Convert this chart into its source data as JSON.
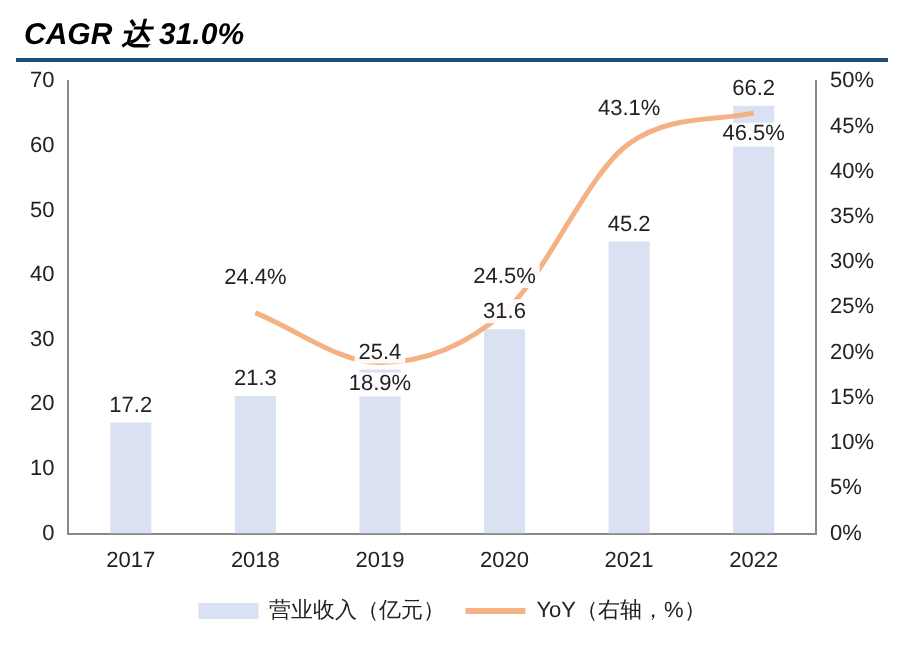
{
  "chart_data": {
    "type": "bar",
    "title": "CAGR 达 31.0%",
    "categories": [
      "2017",
      "2018",
      "2019",
      "2020",
      "2021",
      "2022"
    ],
    "series": [
      {
        "name": "营业收入（亿元）",
        "color": "#dae1f3",
        "values": [
          17.2,
          21.3,
          25.4,
          31.6,
          45.2,
          66.2
        ],
        "value_labels": [
          "17.2",
          "21.3",
          "25.4",
          "31.6",
          "45.2",
          "66.2"
        ]
      },
      {
        "name": "YoY（右轴，%）",
        "type": "line",
        "axis": "y2",
        "color": "#f4b183",
        "values": [
          null,
          24.4,
          18.9,
          24.5,
          43.1,
          46.5
        ],
        "value_labels": [
          null,
          "24.4%",
          "18.9%",
          "24.5%",
          "43.1%",
          "46.5%"
        ]
      }
    ],
    "ylim": [
      0,
      70
    ],
    "yticks": [
      0,
      10,
      20,
      30,
      40,
      50,
      60,
      70
    ],
    "y2lim": [
      0,
      50
    ],
    "y2ticks": [
      {
        "value": 0,
        "label": "0%"
      },
      {
        "value": 5,
        "label": "5%"
      },
      {
        "value": 10,
        "label": "10%"
      },
      {
        "value": 15,
        "label": "15%"
      },
      {
        "value": 20,
        "label": "20%"
      },
      {
        "value": 25,
        "label": "25%"
      },
      {
        "value": 30,
        "label": "30%"
      },
      {
        "value": 35,
        "label": "35%"
      },
      {
        "value": 40,
        "label": "40%"
      },
      {
        "value": 45,
        "label": "45%"
      },
      {
        "value": 50,
        "label": "50%"
      }
    ],
    "grid": false,
    "legend": "bottom",
    "marker": "none",
    "line_style": "solid"
  }
}
